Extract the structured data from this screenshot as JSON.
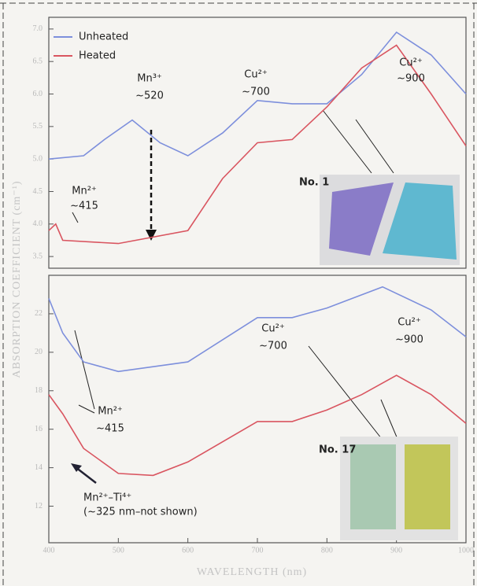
{
  "chart_data": [
    {
      "type": "line",
      "y_label": "ABSORPTION COEFFICIENT (cm⁻¹)",
      "xlim": [
        400,
        1000
      ],
      "ylim": [
        3.32,
        7.18
      ],
      "yticks": [
        3.5,
        {
          "value": 4,
          "label": "4.0"
        },
        4.5,
        {
          "value": 5,
          "label": "5.0"
        },
        5.5,
        {
          "value": 6,
          "label": "6.0"
        },
        6.5,
        {
          "value": 7,
          "label": "7.0"
        }
      ],
      "legend": "upper left",
      "series": [
        {
          "name": "Unheated",
          "color": "#7d8fdc",
          "x": [
            400,
            450,
            480,
            520,
            560,
            600,
            650,
            700,
            750,
            800,
            850,
            900,
            950,
            1000
          ],
          "values": [
            5.0,
            5.05,
            5.3,
            5.6,
            5.25,
            5.05,
            5.4,
            5.9,
            5.85,
            5.85,
            6.3,
            6.95,
            6.6,
            6.0
          ]
        },
        {
          "name": "Heated",
          "color": "#d95560",
          "x": [
            400,
            410,
            420,
            500,
            600,
            650,
            700,
            750,
            800,
            850,
            900,
            950,
            1000
          ],
          "values": [
            3.9,
            4.0,
            3.75,
            3.7,
            3.9,
            4.7,
            5.25,
            5.3,
            5.8,
            6.4,
            6.75,
            6.0,
            5.2
          ]
        }
      ],
      "annotations": [
        "Mn²⁺",
        "~415",
        "Mn³⁺",
        "~520",
        "Cu²⁺",
        "~700",
        "Cu²⁺",
        "~900",
        "No. 1"
      ]
    },
    {
      "type": "line",
      "x_label": "WAVELENGTH (nm)",
      "xlim": [
        400,
        1000
      ],
      "xticks": [
        400,
        500,
        600,
        700,
        800,
        900,
        1000
      ],
      "ylim": [
        10.1,
        24.0
      ],
      "yticks": [
        12,
        14,
        16,
        18,
        20,
        22
      ],
      "series": [
        {
          "color": "#7d8fdc",
          "x": [
            400,
            420,
            450,
            500,
            600,
            700,
            750,
            800,
            880,
            950,
            1000
          ],
          "values": [
            22.8,
            21,
            19.5,
            19,
            19.5,
            21.8,
            21.8,
            22.3,
            23.4,
            22.2,
            20.8
          ]
        },
        {
          "color": "#d95560",
          "x": [
            400,
            420,
            450,
            500,
            550,
            600,
            700,
            750,
            800,
            850,
            900,
            950,
            1000
          ],
          "values": [
            17.8,
            16.8,
            15,
            13.7,
            13.6,
            14.3,
            16.4,
            16.4,
            17,
            17.8,
            18.8,
            17.8,
            16.3
          ]
        }
      ],
      "annotations": [
        "Cu²⁺",
        "~700",
        "Cu²⁺",
        "~900",
        "Mn²⁺",
        "~415",
        "No. 17",
        "Mn²⁺–Ti⁴⁺",
        "(~325 nm–not shown)"
      ]
    }
  ]
}
